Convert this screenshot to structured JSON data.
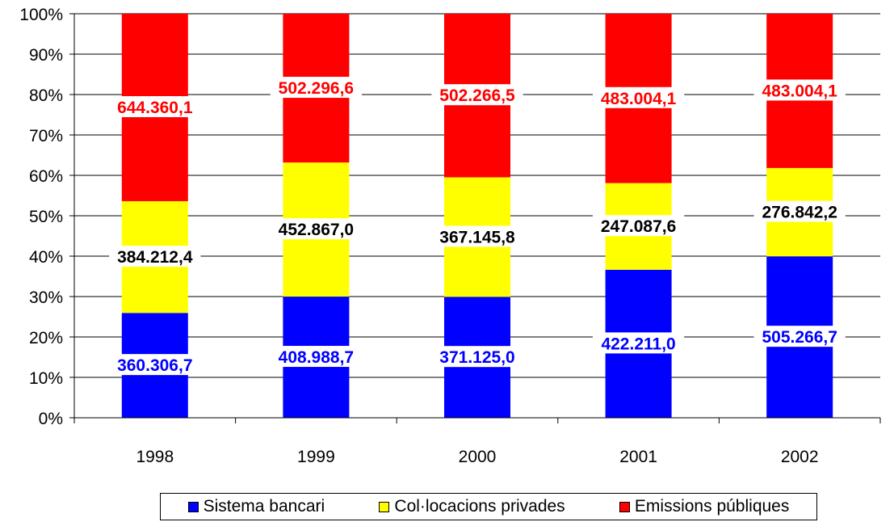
{
  "chart_data": {
    "type": "bar",
    "stacked": "percent",
    "categories": [
      "1998",
      "1999",
      "2000",
      "2001",
      "2002"
    ],
    "series": [
      {
        "name": "Sistema bancari",
        "color": "#0000FF",
        "values": [
          360306.7,
          408988.7,
          371125.0,
          422211.0,
          505266.7
        ],
        "labels": [
          "360.306,7",
          "408.988,7",
          "371.125,0",
          "422.211,0",
          "505.266,7"
        ],
        "label_color": "#0000FF"
      },
      {
        "name": "Col·locacions privades",
        "color": "#FFFF00",
        "values": [
          384212.4,
          452867.0,
          367145.8,
          247087.6,
          276842.2
        ],
        "labels": [
          "384.212,4",
          "452.867,0",
          "367.145,8",
          "247.087,6",
          "276.842,2"
        ],
        "label_color": "#000000"
      },
      {
        "name": "Emissions públiques",
        "color": "#FF0000",
        "values": [
          644360.1,
          502296.6,
          502266.5,
          483004.1,
          483004.1
        ],
        "labels": [
          "644.360,1",
          "502.296,6",
          "502.266,5",
          "483.004,1",
          "483.004,1"
        ],
        "label_color": "#FF0000"
      }
    ],
    "y_ticks": [
      "0%",
      "10%",
      "20%",
      "30%",
      "40%",
      "50%",
      "60%",
      "70%",
      "80%",
      "90%",
      "100%"
    ],
    "ylim": [
      0,
      100
    ],
    "grid": true,
    "legend_position": "bottom"
  }
}
